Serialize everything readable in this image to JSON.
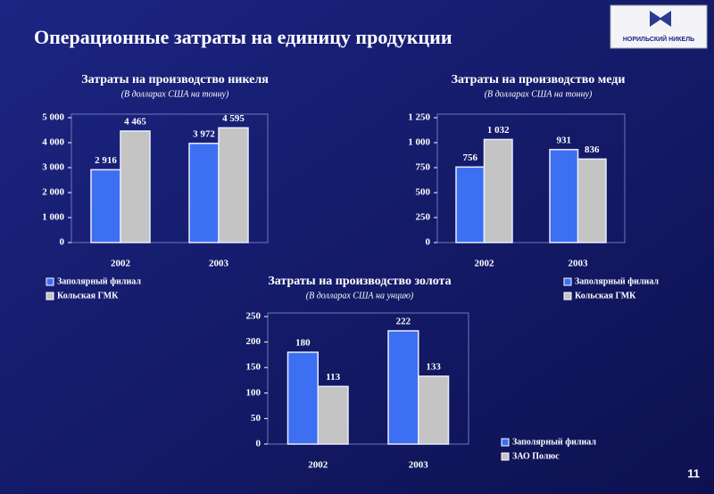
{
  "title": "Операционные затраты на единицу продукции",
  "logo": "НОРИЛЬСКИЙ НИКЕЛЬ",
  "page_number": "11",
  "chart_data": [
    {
      "type": "bar",
      "title": "Затраты на производство никеля",
      "subtitle": "(В долларах США на тонну)",
      "categories": [
        "2002",
        "2003"
      ],
      "series": [
        {
          "name": "Заполярный филиал",
          "color": "#3d6ff2",
          "values": [
            2916,
            3972
          ],
          "value_labels": [
            "2 916",
            "3 972"
          ]
        },
        {
          "name": "Кольская ГМК",
          "color": "#c4c4c4",
          "values": [
            4465,
            4595
          ],
          "value_labels": [
            "4 465",
            "4 595"
          ]
        }
      ],
      "ylim": [
        0,
        5000
      ],
      "yticks": [
        0,
        {
          "value": 1000,
          "label": "1 000"
        },
        {
          "value": 2000,
          "label": "2 000"
        },
        {
          "value": 3000,
          "label": "3 000"
        },
        {
          "value": 4000,
          "label": "4 000"
        },
        {
          "value": 5000,
          "label": "5 000"
        }
      ]
    },
    {
      "type": "bar",
      "title": "Затраты на производство меди",
      "subtitle": "(В долларах США на тонну)",
      "categories": [
        "2002",
        "2003"
      ],
      "series": [
        {
          "name": "Заполярный филиал",
          "color": "#3d6ff2",
          "values": [
            756,
            931
          ]
        },
        {
          "name": "Кольская ГМК",
          "color": "#c4c4c4",
          "values": [
            1032,
            836
          ],
          "value_labels": [
            "1 032",
            "836"
          ]
        }
      ],
      "ylim": [
        0,
        1250
      ],
      "yticks": [
        0,
        250,
        500,
        750,
        {
          "value": 1000,
          "label": "1 000"
        },
        {
          "value": 1250,
          "label": "1 250"
        }
      ]
    },
    {
      "type": "bar",
      "title": "Затраты на производство золота",
      "subtitle": "(В долларах США на унцию)",
      "categories": [
        "2002",
        "2003"
      ],
      "series": [
        {
          "name": "Заполярный филиал",
          "color": "#3d6ff2",
          "values": [
            180,
            222
          ]
        },
        {
          "name": "ЗАО Полюс",
          "color": "#c4c4c4",
          "values": [
            113,
            133
          ]
        }
      ],
      "ylim": [
        0,
        250
      ],
      "yticks": [
        0,
        50,
        100,
        150,
        200,
        250
      ]
    }
  ]
}
